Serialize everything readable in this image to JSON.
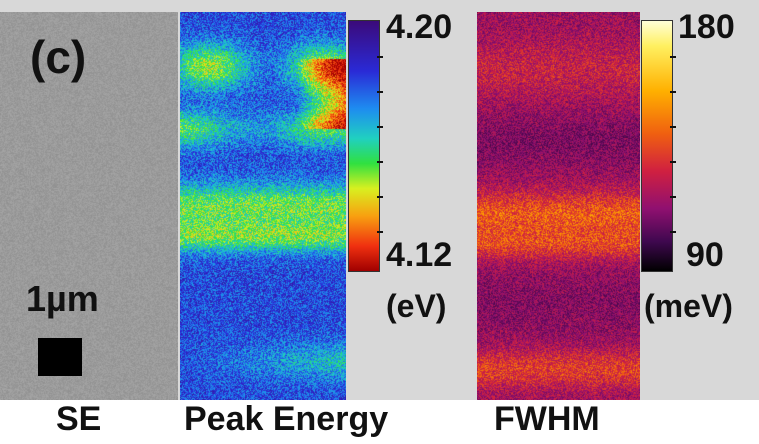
{
  "panel_label": "(c)",
  "scale_bar": {
    "label": "1µm"
  },
  "captions": {
    "se": "SE",
    "peak_energy": "Peak Energy",
    "fwhm": "FWHM"
  },
  "peak_energy_colorbar": {
    "max_label": "4.20",
    "min_label": "4.12",
    "unit": "(eV)"
  },
  "fwhm_colorbar": {
    "max_label": "180",
    "min_label": "90",
    "unit": "(meV)"
  },
  "colors": {
    "frame_gray": "#d8d8d8",
    "se_gray": "#9a9a9a",
    "text": "#111111"
  }
}
